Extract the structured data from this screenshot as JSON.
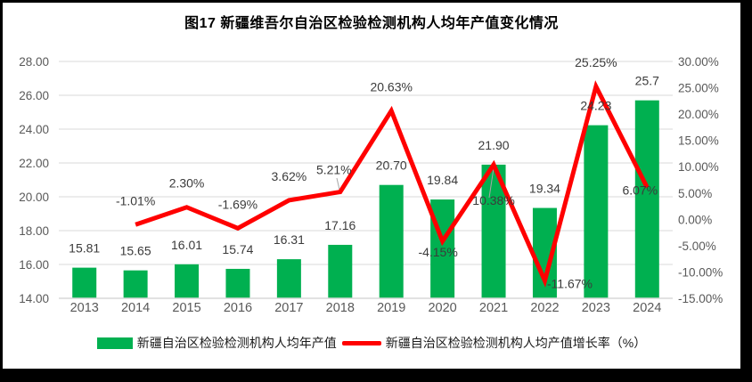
{
  "chart_data": {
    "type": "combo-bar-line",
    "title": "图17 新疆维吾尔自治区检验检测机构人均年产值变化情况",
    "categories": [
      "2013",
      "2014",
      "2015",
      "2016",
      "2017",
      "2018",
      "2019",
      "2020",
      "2021",
      "2022",
      "2023",
      "2024"
    ],
    "series": [
      {
        "name": "新疆自治区检验检测机构人均年产值",
        "type": "bar",
        "color": "#00B050",
        "values": [
          15.81,
          15.65,
          16.01,
          15.74,
          16.31,
          17.16,
          20.7,
          19.84,
          21.9,
          19.34,
          24.23,
          25.7
        ],
        "labels": [
          "15.81",
          "15.65",
          "16.01",
          "15.74",
          "16.31",
          "17.16",
          "20.70",
          "19.84",
          "21.90",
          "19.34",
          "24.23",
          "25.7"
        ]
      },
      {
        "name": "新疆自治区检验检测机构人均产值增长率（%）",
        "type": "line",
        "color": "#FF0000",
        "values": [
          null,
          -1.01,
          2.3,
          -1.69,
          3.62,
          5.21,
          20.63,
          -4.15,
          10.38,
          -11.67,
          25.25,
          6.07
        ],
        "labels": [
          null,
          "-1.01%",
          "2.30%",
          "-1.69%",
          "3.62%",
          "5.21%",
          "20.63%",
          "-4.15%",
          "10.38%",
          "-11.67%",
          "25.25%",
          "6.07%"
        ],
        "label_side": [
          null,
          "above",
          "above",
          "above",
          "above",
          "above",
          "above",
          "below",
          "below",
          "below",
          "above",
          "below"
        ]
      }
    ],
    "axes": {
      "left": {
        "min": 14,
        "max": 28,
        "step": 2,
        "tick_labels": [
          "28.00",
          "26.00",
          "24.00",
          "22.00",
          "20.00",
          "18.00",
          "16.00",
          "14.00"
        ]
      },
      "right": {
        "min": -15,
        "max": 30,
        "step": 5,
        "tick_labels": [
          "30.00%",
          "25.00%",
          "20.00%",
          "15.00%",
          "10.00%",
          "5.00%",
          "0.00%",
          "-5.00%",
          "-10.00%",
          "-15.00%"
        ]
      }
    },
    "grid": true,
    "legend_position": "bottom",
    "styles": {
      "gridline_color": "#D9D9D9",
      "axis_line_color": "#D9D9D9",
      "axis_text_color": "#595959",
      "value_text_color": "#3b3b3b",
      "leader_color": "#A6A6A6",
      "frame_color": "#000000",
      "background": "#FFFFFF"
    }
  }
}
